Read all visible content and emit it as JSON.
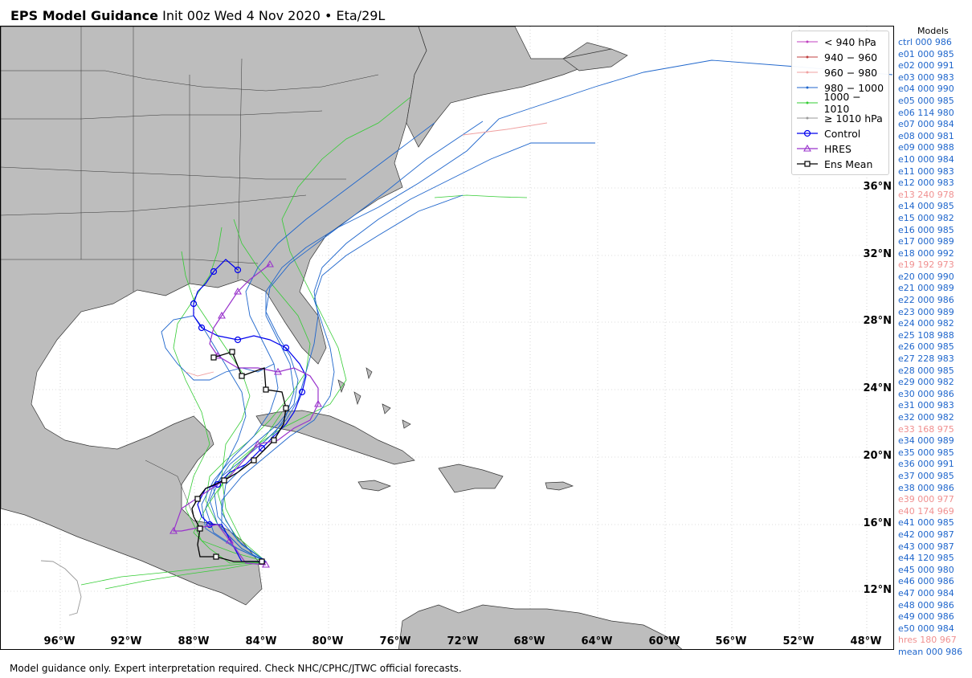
{
  "header": {
    "title_bold": "EPS Model Guidance",
    "title_rest": "Init 00z Wed 4 Nov 2020 • Eta/29L"
  },
  "map": {
    "lat_labels": [
      "36°N",
      "32°N",
      "28°N",
      "24°N",
      "20°N",
      "16°N",
      "12°N"
    ],
    "lon_labels": [
      "96°W",
      "92°W",
      "88°W",
      "84°W",
      "80°W",
      "76°W",
      "72°W",
      "68°W",
      "64°W",
      "60°W",
      "56°W",
      "52°W",
      "48°W"
    ]
  },
  "legend": {
    "items": [
      {
        "label": "< 940 hPa",
        "color": "#c040c0",
        "marker": "dot"
      },
      {
        "label": "940 − 960",
        "color": "#c04040",
        "marker": "dot"
      },
      {
        "label": "960 − 980",
        "color": "#f0a0a0",
        "marker": "dot"
      },
      {
        "label": "980 − 1000",
        "color": "#1f66cc",
        "marker": "dot"
      },
      {
        "label": "1000 − 1010",
        "color": "#33cc33",
        "marker": "dot"
      },
      {
        "label": "≥ 1010 hPa",
        "color": "#999999",
        "marker": "dot"
      },
      {
        "label": "Control",
        "color": "#0000ee",
        "marker": "circle"
      },
      {
        "label": "HRES",
        "color": "#9933cc",
        "marker": "triangle"
      },
      {
        "label": "Ens Mean",
        "color": "#000000",
        "marker": "square"
      }
    ]
  },
  "models": {
    "title": "Models",
    "entries": [
      {
        "text": "ctrl 000 986",
        "color": "#1f66cc"
      },
      {
        "text": "e01 000 985",
        "color": "#1f66cc"
      },
      {
        "text": "e02 000 991",
        "color": "#1f66cc"
      },
      {
        "text": "e03 000 983",
        "color": "#1f66cc"
      },
      {
        "text": "e04 000 990",
        "color": "#1f66cc"
      },
      {
        "text": "e05 000 985",
        "color": "#1f66cc"
      },
      {
        "text": "e06 114 980",
        "color": "#1f66cc"
      },
      {
        "text": "e07 000 984",
        "color": "#1f66cc"
      },
      {
        "text": "e08 000 981",
        "color": "#1f66cc"
      },
      {
        "text": "e09 000 988",
        "color": "#1f66cc"
      },
      {
        "text": "e10 000 984",
        "color": "#1f66cc"
      },
      {
        "text": "e11 000 983",
        "color": "#1f66cc"
      },
      {
        "text": "e12 000 983",
        "color": "#1f66cc"
      },
      {
        "text": "e13 240 978",
        "color": "#f09090"
      },
      {
        "text": "e14 000 985",
        "color": "#1f66cc"
      },
      {
        "text": "e15 000 982",
        "color": "#1f66cc"
      },
      {
        "text": "e16 000 985",
        "color": "#1f66cc"
      },
      {
        "text": "e17 000 989",
        "color": "#1f66cc"
      },
      {
        "text": "e18 000 992",
        "color": "#1f66cc"
      },
      {
        "text": "e19 192 973",
        "color": "#f09090"
      },
      {
        "text": "e20 000 990",
        "color": "#1f66cc"
      },
      {
        "text": "e21 000 989",
        "color": "#1f66cc"
      },
      {
        "text": "e22 000 986",
        "color": "#1f66cc"
      },
      {
        "text": "e23 000 989",
        "color": "#1f66cc"
      },
      {
        "text": "e24 000 982",
        "color": "#1f66cc"
      },
      {
        "text": "e25 108 988",
        "color": "#1f66cc"
      },
      {
        "text": "e26 000 985",
        "color": "#1f66cc"
      },
      {
        "text": "e27 228 983",
        "color": "#1f66cc"
      },
      {
        "text": "e28 000 985",
        "color": "#1f66cc"
      },
      {
        "text": "e29 000 982",
        "color": "#1f66cc"
      },
      {
        "text": "e30 000 986",
        "color": "#1f66cc"
      },
      {
        "text": "e31 000 983",
        "color": "#1f66cc"
      },
      {
        "text": "e32 000 982",
        "color": "#1f66cc"
      },
      {
        "text": "e33 168 975",
        "color": "#f09090"
      },
      {
        "text": "e34 000 989",
        "color": "#1f66cc"
      },
      {
        "text": "e35 000 985",
        "color": "#1f66cc"
      },
      {
        "text": "e36 000 991",
        "color": "#1f66cc"
      },
      {
        "text": "e37 000 985",
        "color": "#1f66cc"
      },
      {
        "text": "e38 000 986",
        "color": "#1f66cc"
      },
      {
        "text": "e39 000 977",
        "color": "#f09090"
      },
      {
        "text": "e40 174 969",
        "color": "#f09090"
      },
      {
        "text": "e41 000 985",
        "color": "#1f66cc"
      },
      {
        "text": "e42 000 987",
        "color": "#1f66cc"
      },
      {
        "text": "e43 000 987",
        "color": "#1f66cc"
      },
      {
        "text": "e44 120 985",
        "color": "#1f66cc"
      },
      {
        "text": "e45 000 980",
        "color": "#1f66cc"
      },
      {
        "text": "e46 000 986",
        "color": "#1f66cc"
      },
      {
        "text": "e47 000 984",
        "color": "#1f66cc"
      },
      {
        "text": "e48 000 986",
        "color": "#1f66cc"
      },
      {
        "text": "e49 000 986",
        "color": "#1f66cc"
      },
      {
        "text": "e50 000 984",
        "color": "#1f66cc"
      },
      {
        "text": "hres 180 967",
        "color": "#f09090"
      },
      {
        "text": "mean 000 986",
        "color": "#1f66cc"
      }
    ]
  },
  "footer": {
    "text": "Model guidance only. Expert interpretation required. Check NHC/CPHC/JTWC official forecasts."
  }
}
